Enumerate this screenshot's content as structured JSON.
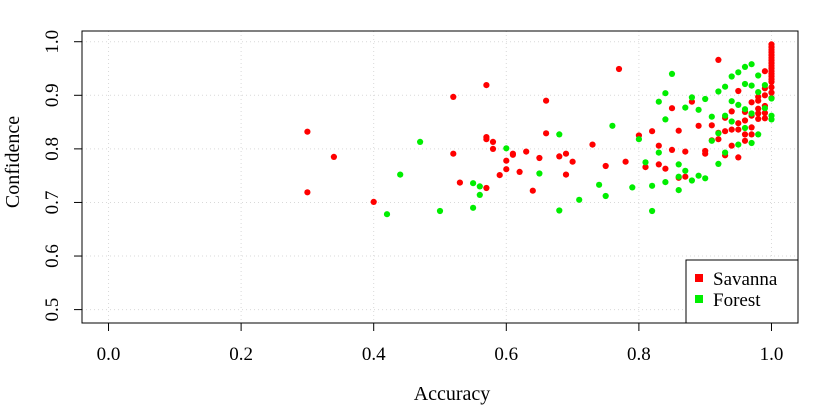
{
  "chart_data": {
    "type": "scatter",
    "title": "",
    "xlabel": "Accuracy",
    "ylabel": "Confidence",
    "xlim": [
      -0.04,
      1.04
    ],
    "ylim": [
      0.475,
      1.02
    ],
    "xticks": [
      0,
      0.2,
      0.4,
      0.6,
      0.8,
      1
    ],
    "xtick_labels": [
      "0.0",
      "0.2",
      "0.4",
      "0.6",
      "0.8",
      "1.0"
    ],
    "yticks": [
      0.5,
      0.6,
      0.7,
      0.8,
      0.9,
      1
    ],
    "ytick_labels": [
      "0.5",
      "0.6",
      "0.7",
      "0.8",
      "0.9",
      "1.0"
    ],
    "grid": true,
    "legend_position": "bottom-right",
    "series": [
      {
        "name": "Savanna",
        "color": "#ff0000",
        "x": [
          0.3,
          0.3,
          0.34,
          0.4,
          0.52,
          0.52,
          0.53,
          0.57,
          0.57,
          0.57,
          0.57,
          0.58,
          0.58,
          0.59,
          0.6,
          0.6,
          0.61,
          0.61,
          0.62,
          0.63,
          0.64,
          0.65,
          0.66,
          0.66,
          0.68,
          0.69,
          0.69,
          0.7,
          0.73,
          0.75,
          0.77,
          0.78,
          0.8,
          0.81,
          0.82,
          0.83,
          0.83,
          0.84,
          0.85,
          0.85,
          0.86,
          0.86,
          0.87,
          0.87,
          0.88,
          0.89,
          0.9,
          0.9,
          0.91,
          0.91,
          0.92,
          0.92,
          0.92,
          0.93,
          0.93,
          0.93,
          0.94,
          0.94,
          0.94,
          0.95,
          0.95,
          0.95,
          0.95,
          0.96,
          0.96,
          0.96,
          0.96,
          0.97,
          0.97,
          0.97,
          0.97,
          0.98,
          0.98,
          0.98,
          0.98,
          0.98,
          0.99,
          0.99,
          0.99,
          0.99,
          0.99,
          0.99,
          1.0,
          1.0,
          1.0,
          1.0,
          1.0,
          1.0,
          1.0,
          1.0,
          1.0,
          1.0,
          1.0,
          1.0,
          1.0,
          1.0,
          1.0,
          1.0,
          1.0,
          1.0
        ],
        "y": [
          0.832,
          0.719,
          0.785,
          0.701,
          0.897,
          0.791,
          0.737,
          0.919,
          0.822,
          0.818,
          0.727,
          0.8,
          0.813,
          0.751,
          0.778,
          0.762,
          0.791,
          0.789,
          0.757,
          0.795,
          0.722,
          0.783,
          0.89,
          0.829,
          0.786,
          0.791,
          0.752,
          0.776,
          0.808,
          0.768,
          0.949,
          0.776,
          0.825,
          0.766,
          0.833,
          0.806,
          0.771,
          0.763,
          0.876,
          0.798,
          0.746,
          0.834,
          0.795,
          0.748,
          0.888,
          0.843,
          0.796,
          0.791,
          0.844,
          0.816,
          0.966,
          0.83,
          0.818,
          0.858,
          0.788,
          0.833,
          0.87,
          0.836,
          0.806,
          0.848,
          0.836,
          0.784,
          0.908,
          0.869,
          0.853,
          0.815,
          0.827,
          0.887,
          0.862,
          0.84,
          0.827,
          0.89,
          0.875,
          0.866,
          0.856,
          0.897,
          0.9,
          0.88,
          0.867,
          0.857,
          0.945,
          0.913,
          0.995,
          0.99,
          0.985,
          0.98,
          0.975,
          0.97,
          0.965,
          0.96,
          0.955,
          0.95,
          0.945,
          0.94,
          0.935,
          0.93,
          0.925,
          0.915,
          0.905,
          0.895
        ]
      },
      {
        "name": "Forest",
        "color": "#00ee00",
        "x": [
          0.42,
          0.44,
          0.47,
          0.5,
          0.55,
          0.55,
          0.56,
          0.56,
          0.6,
          0.65,
          0.68,
          0.68,
          0.71,
          0.74,
          0.75,
          0.76,
          0.79,
          0.8,
          0.81,
          0.82,
          0.82,
          0.83,
          0.83,
          0.84,
          0.84,
          0.84,
          0.85,
          0.86,
          0.86,
          0.86,
          0.87,
          0.87,
          0.88,
          0.88,
          0.89,
          0.89,
          0.9,
          0.9,
          0.91,
          0.91,
          0.92,
          0.92,
          0.92,
          0.93,
          0.93,
          0.93,
          0.94,
          0.94,
          0.94,
          0.95,
          0.95,
          0.95,
          0.96,
          0.96,
          0.96,
          0.96,
          0.97,
          0.97,
          0.97,
          0.97,
          0.98,
          0.98,
          0.98,
          0.99,
          0.99,
          1.0,
          1.0,
          1.0
        ],
        "y": [
          0.678,
          0.752,
          0.813,
          0.684,
          0.69,
          0.736,
          0.73,
          0.714,
          0.801,
          0.754,
          0.827,
          0.685,
          0.705,
          0.733,
          0.712,
          0.843,
          0.728,
          0.818,
          0.775,
          0.731,
          0.684,
          0.793,
          0.888,
          0.904,
          0.855,
          0.738,
          0.94,
          0.771,
          0.748,
          0.723,
          0.877,
          0.759,
          0.896,
          0.741,
          0.873,
          0.75,
          0.893,
          0.745,
          0.86,
          0.815,
          0.907,
          0.829,
          0.772,
          0.916,
          0.862,
          0.793,
          0.935,
          0.889,
          0.851,
          0.943,
          0.882,
          0.808,
          0.953,
          0.921,
          0.874,
          0.839,
          0.958,
          0.918,
          0.866,
          0.811,
          0.937,
          0.906,
          0.827,
          0.919,
          0.876,
          0.894,
          0.862,
          0.855
        ]
      }
    ]
  }
}
